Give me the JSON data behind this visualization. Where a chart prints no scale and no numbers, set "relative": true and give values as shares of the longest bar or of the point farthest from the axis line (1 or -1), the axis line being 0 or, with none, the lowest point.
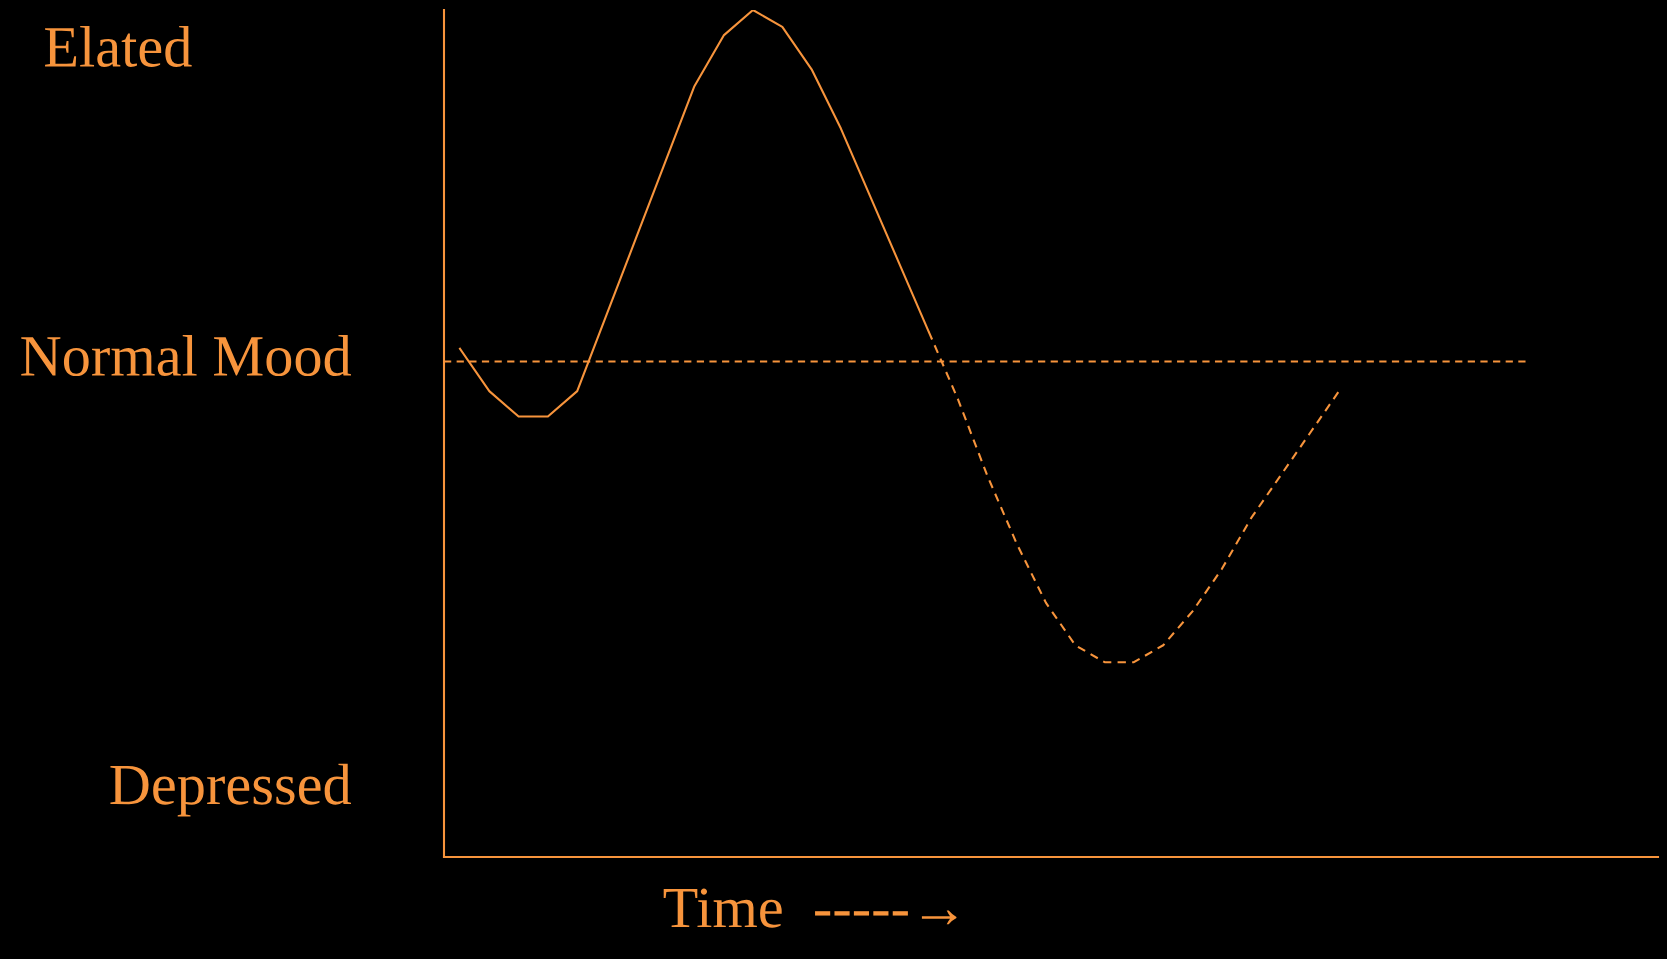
{
  "chart_data": {
    "type": "line",
    "relative": true,
    "xlabel": "Time  -----→",
    "categories": [
      null,
      null,
      null,
      null,
      null,
      null,
      null,
      null,
      null,
      null,
      null,
      null,
      null,
      null,
      null,
      null,
      null,
      null,
      null,
      null,
      null,
      null,
      null,
      null,
      null,
      null,
      null,
      null,
      null,
      null,
      null
    ],
    "series": [
      {
        "color": "#f7943c",
        "line_style": "solid",
        "values": [
          0.6,
          0.55,
          0.52,
          0.52,
          0.55,
          0.64,
          0.73,
          0.82,
          0.91,
          0.97,
          1.0,
          0.98,
          0.93,
          0.86,
          0.78,
          0.7,
          0.62,
          null,
          null,
          null,
          null,
          null,
          null,
          null,
          null,
          null,
          null,
          null,
          null,
          null,
          null
        ]
      },
      {
        "color": "#f7943c",
        "line_style": "dashed",
        "values": [
          null,
          null,
          null,
          null,
          null,
          null,
          null,
          null,
          null,
          null,
          null,
          null,
          null,
          null,
          null,
          null,
          0.62,
          0.54,
          0.45,
          0.37,
          0.3,
          0.25,
          0.23,
          0.23,
          0.25,
          0.29,
          0.34,
          0.4,
          0.45,
          0.5,
          0.55
        ]
      }
    ],
    "ref_lines": [
      {
        "axis": "y",
        "value": 0.585,
        "label": "Normal Mood",
        "color": "#f7943c",
        "line_style": "dashed"
      }
    ],
    "annotations": [
      "Elated",
      "Depressed"
    ],
    "legend": false
  }
}
